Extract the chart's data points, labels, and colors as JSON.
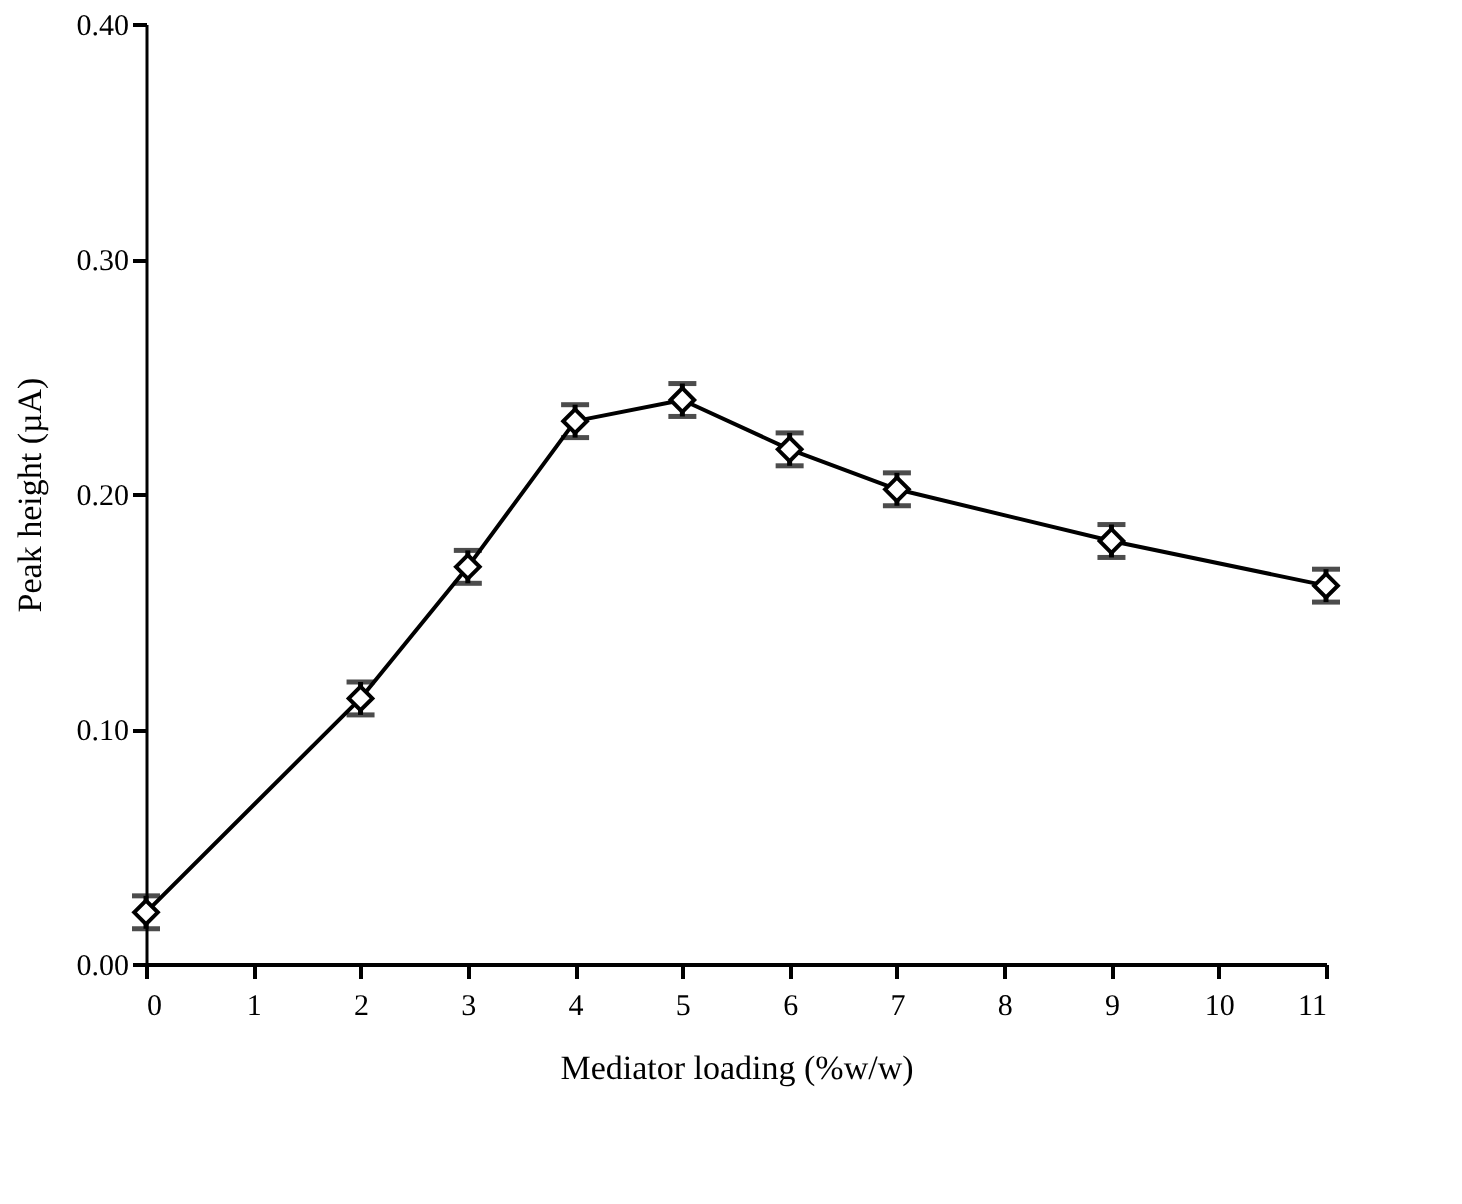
{
  "chart_data": {
    "type": "line",
    "xlabel": "Mediator loading (%w/w)",
    "ylabel": "Peak height (µA)",
    "xlim": [
      0,
      11
    ],
    "xticks": [
      0,
      1,
      2,
      3,
      4,
      5,
      6,
      7,
      8,
      9,
      10,
      11
    ],
    "ylim": [
      0,
      0.4
    ],
    "yticks": [
      {
        "value": 0,
        "label": "0.00"
      },
      {
        "value": 0.1,
        "label": "0.10"
      },
      {
        "value": 0.2,
        "label": "0.20"
      },
      {
        "value": 0.3,
        "label": "0.30"
      },
      {
        "value": 0.4,
        "label": "0.40"
      }
    ],
    "x": [
      0,
      2,
      3,
      4,
      5,
      6,
      7,
      9,
      11
    ],
    "series": [
      {
        "color": "#000000",
        "values": [
          0.022,
          0.113,
          0.169,
          0.231,
          0.24,
          0.219,
          0.202,
          0.18,
          0.161
        ],
        "errors": [
          0.007,
          0.007,
          0.007,
          0.007,
          0.007,
          0.007,
          0.007,
          0.007,
          0.007
        ]
      }
    ],
    "marker": "diamond",
    "line_style": "solid",
    "grid": false
  }
}
